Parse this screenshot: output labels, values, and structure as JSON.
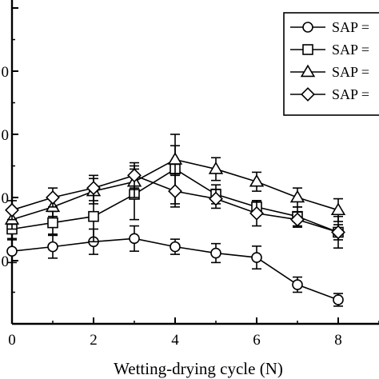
{
  "chart_data": {
    "type": "line",
    "xlabel": "Wetting-drying cycle (N)",
    "ylabel": "",
    "xlim": [
      0,
      9
    ],
    "ylim": [
      0,
      5
    ],
    "x_ticks": [
      "0",
      "2",
      "4",
      "6",
      "8"
    ],
    "y_ticks": [
      "0",
      "0",
      "0",
      "0"
    ],
    "grid": false,
    "legend_placement": "top-right",
    "series": [
      {
        "name": "SAP =",
        "marker": "circle",
        "x": [
          0,
          1,
          2,
          3,
          4,
          5,
          6,
          7,
          8
        ],
        "y": [
          1.15,
          1.22,
          1.3,
          1.35,
          1.22,
          1.12,
          1.05,
          0.62,
          0.38
        ],
        "err": [
          0.18,
          0.18,
          0.2,
          0.2,
          0.12,
          0.15,
          0.18,
          0.12,
          0.1
        ]
      },
      {
        "name": "SAP =",
        "marker": "square",
        "x": [
          0,
          1,
          2,
          3,
          4,
          5,
          6,
          7,
          8
        ],
        "y": [
          1.5,
          1.6,
          1.7,
          2.05,
          2.45,
          2.05,
          1.85,
          1.7,
          1.45
        ],
        "err": [
          0.15,
          0.18,
          0.4,
          0.4,
          0.55,
          0.15,
          0.1,
          0.15,
          0.25
        ]
      },
      {
        "name": "SAP =",
        "marker": "triangle",
        "x": [
          0,
          1,
          2,
          3,
          4,
          5,
          6,
          7,
          8
        ],
        "y": [
          1.65,
          1.85,
          2.1,
          2.25,
          2.6,
          2.45,
          2.25,
          2.0,
          1.8
        ],
        "err": [
          0.15,
          0.15,
          0.2,
          0.25,
          0.22,
          0.18,
          0.15,
          0.15,
          0.18
        ]
      },
      {
        "name": "SAP =",
        "marker": "diamond",
        "x": [
          0,
          1,
          2,
          3,
          4,
          5,
          6,
          7,
          8
        ],
        "y": [
          1.8,
          2.0,
          2.15,
          2.35,
          2.1,
          1.98,
          1.75,
          1.65,
          1.45
        ],
        "err": [
          0.15,
          0.15,
          0.2,
          0.2,
          0.25,
          0.15,
          0.2,
          0.12,
          0.12
        ]
      }
    ]
  }
}
